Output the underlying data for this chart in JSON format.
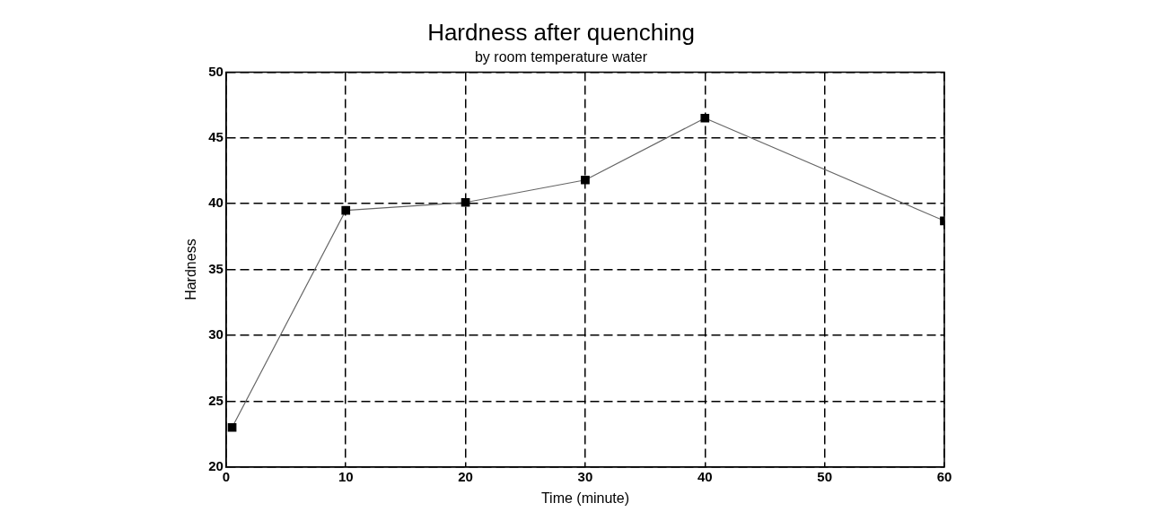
{
  "chart_data": {
    "type": "line",
    "title": "Hardness after quenching",
    "subtitle": "by room temperature water",
    "xlabel": "Time (minute)",
    "ylabel": "Hardness",
    "x": [
      0.5,
      10,
      20,
      30,
      40,
      60
    ],
    "series": [
      {
        "color": "#000000",
        "values": [
          23,
          39.5,
          40.1,
          41.8,
          46.5,
          38.7
        ]
      }
    ],
    "xlim": [
      0,
      60
    ],
    "xticks": [
      0,
      10,
      20,
      30,
      40,
      50,
      60
    ],
    "ylim": [
      20,
      50
    ],
    "yticks": [
      20,
      25,
      30,
      35,
      40,
      45,
      50
    ],
    "grid": true,
    "marker": "square",
    "line_style": "solid",
    "legend": false
  }
}
